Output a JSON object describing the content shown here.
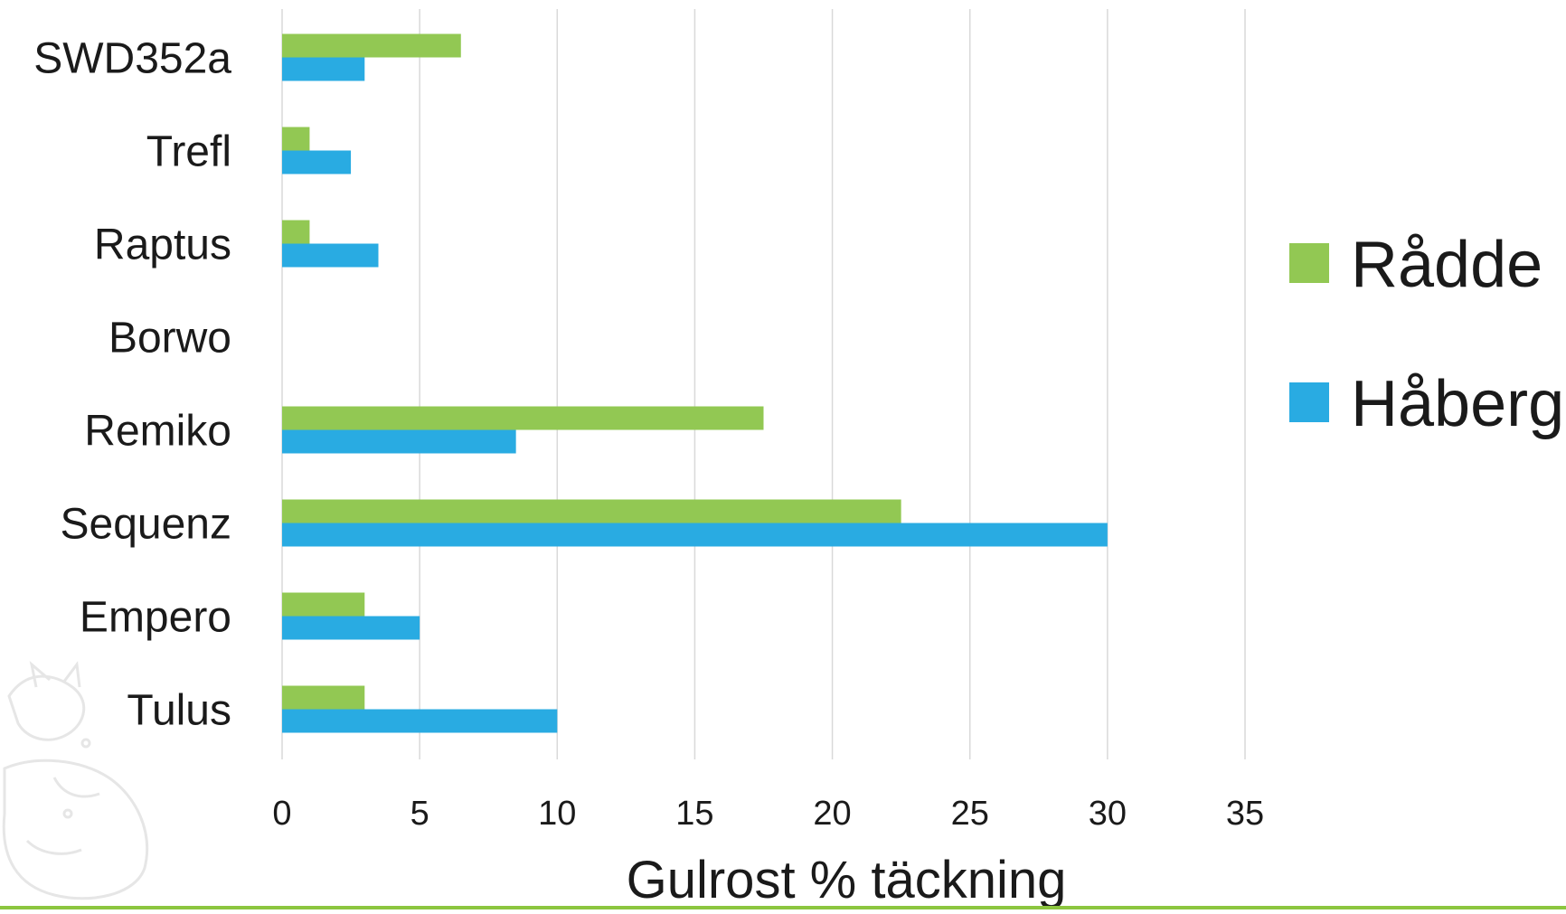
{
  "colors": {
    "series_0": "#92c853",
    "series_1": "#29abe2",
    "grid": "#d9d9d9",
    "bottom_rule": "#8cc63f",
    "watermark": "#e6e6e6"
  },
  "chart_data": {
    "type": "bar",
    "orientation": "horizontal",
    "categories": [
      "SWD352a",
      "Trefl",
      "Raptus",
      "Borwo",
      "Remiko",
      "Sequenz",
      "Empero",
      "Tulus"
    ],
    "series": [
      {
        "name": "Rådde",
        "values": [
          6.5,
          1,
          1,
          0,
          17.5,
          22.5,
          3,
          3
        ]
      },
      {
        "name": "Håberg",
        "values": [
          3,
          2.5,
          3.5,
          0,
          8.5,
          30,
          5,
          10
        ]
      }
    ],
    "title": "",
    "xlabel": "Gulrost % täckning",
    "ylabel": "",
    "xlim": [
      0,
      35
    ],
    "xticks": [
      "0",
      "5",
      "10",
      "15",
      "20",
      "25",
      "30",
      "35"
    ],
    "grid": "vertical",
    "legend_position": "right"
  }
}
